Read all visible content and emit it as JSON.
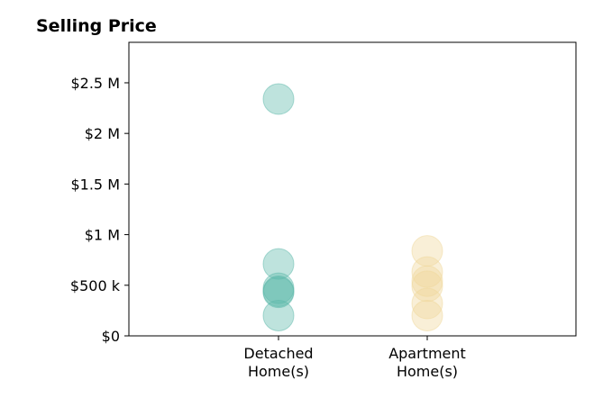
{
  "chart_data": {
    "type": "scatter",
    "title": "Selling Price",
    "xlabel": "",
    "ylabel": "",
    "categories": [
      "Detached\nHome(s)",
      "Apartment\nHome(s)"
    ],
    "ylim": [
      0,
      2900000
    ],
    "yticks": [
      0,
      500000,
      1000000,
      1500000,
      2000000,
      2500000
    ],
    "ytick_labels": [
      "$0",
      "$500 k",
      "$1 M",
      "$1.5 M",
      "$2 M",
      "$2.5 M"
    ],
    "grid": false,
    "legend": "none",
    "series": [
      {
        "category": "Detached\nHome(s)",
        "color": "#5cb8aa",
        "values": [
          2340000,
          710000,
          470000,
          440000,
          430000,
          200000
        ]
      },
      {
        "category": "Apartment\nHome(s)",
        "color": "#f0d89a",
        "values": [
          840000,
          630000,
          540000,
          490000,
          320000,
          200000
        ]
      }
    ]
  }
}
